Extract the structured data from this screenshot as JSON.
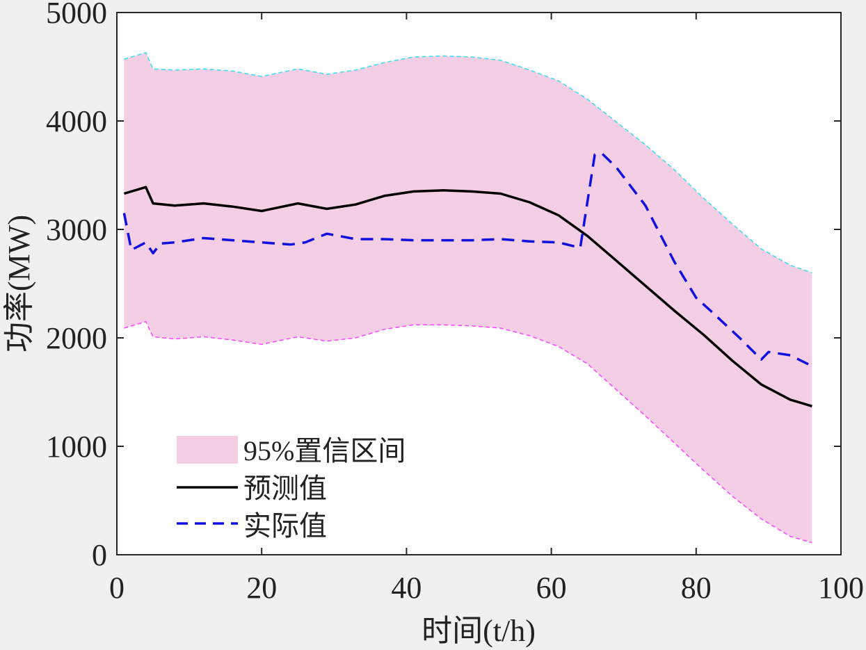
{
  "chart_data": {
    "type": "line",
    "title": "",
    "xlabel": "时间(t/h)",
    "ylabel": "功率(MW)",
    "xlim": [
      0,
      100
    ],
    "ylim": [
      0,
      5000
    ],
    "xticks": [
      0,
      20,
      40,
      60,
      80,
      100
    ],
    "yticks": [
      0,
      1000,
      2000,
      3000,
      4000,
      5000
    ],
    "grid": false,
    "legend_position": "bottom-left",
    "colors": {
      "band_fill": "#f3cee4",
      "upper_bound": "#33e0f0",
      "lower_bound": "#ff44ff",
      "predicted": "#000000",
      "actual": "#1010e0",
      "axes": "#262626",
      "background": "#ffffff",
      "figure_background": "#f0f0f0"
    },
    "band": {
      "name": "95%置信区间",
      "x": [
        1,
        4,
        5,
        8,
        12,
        16,
        20,
        25,
        29,
        33,
        37,
        41,
        45,
        49,
        53,
        57,
        61,
        65,
        69,
        73,
        77,
        81,
        85,
        89,
        93,
        96
      ],
      "upper": [
        4570,
        4630,
        4480,
        4470,
        4480,
        4460,
        4410,
        4480,
        4430,
        4470,
        4540,
        4590,
        4600,
        4590,
        4560,
        4470,
        4370,
        4200,
        3990,
        3780,
        3550,
        3290,
        3050,
        2820,
        2670,
        2600
      ],
      "lower": [
        2090,
        2150,
        2010,
        1990,
        2010,
        1980,
        1940,
        2010,
        1970,
        2000,
        2080,
        2120,
        2120,
        2110,
        2090,
        2020,
        1920,
        1760,
        1520,
        1280,
        1030,
        780,
        540,
        330,
        170,
        110
      ]
    },
    "series": [
      {
        "name": "预测值",
        "style": "solid",
        "x": [
          1,
          4,
          5,
          8,
          12,
          16,
          20,
          25,
          29,
          33,
          37,
          41,
          45,
          49,
          53,
          57,
          61,
          65,
          69,
          73,
          77,
          81,
          85,
          89,
          93,
          96
        ],
        "values": [
          3330,
          3390,
          3240,
          3220,
          3240,
          3210,
          3170,
          3240,
          3190,
          3230,
          3310,
          3350,
          3360,
          3350,
          3330,
          3250,
          3130,
          2940,
          2710,
          2480,
          2250,
          2030,
          1790,
          1570,
          1430,
          1370
        ]
      },
      {
        "name": "实际值",
        "style": "dashed",
        "x": [
          1,
          2,
          4,
          5,
          6,
          8,
          12,
          16,
          20,
          24,
          26,
          29,
          33,
          37,
          41,
          45,
          49,
          53,
          57,
          61,
          64,
          66,
          67,
          69,
          73,
          77,
          80,
          82,
          86,
          89,
          90,
          93,
          96
        ],
        "values": [
          3150,
          2810,
          2880,
          2780,
          2870,
          2880,
          2920,
          2900,
          2880,
          2860,
          2880,
          2960,
          2910,
          2910,
          2900,
          2900,
          2900,
          2910,
          2890,
          2880,
          2830,
          3690,
          3700,
          3570,
          3220,
          2700,
          2370,
          2250,
          2000,
          1800,
          1870,
          1840,
          1740
        ]
      }
    ]
  }
}
